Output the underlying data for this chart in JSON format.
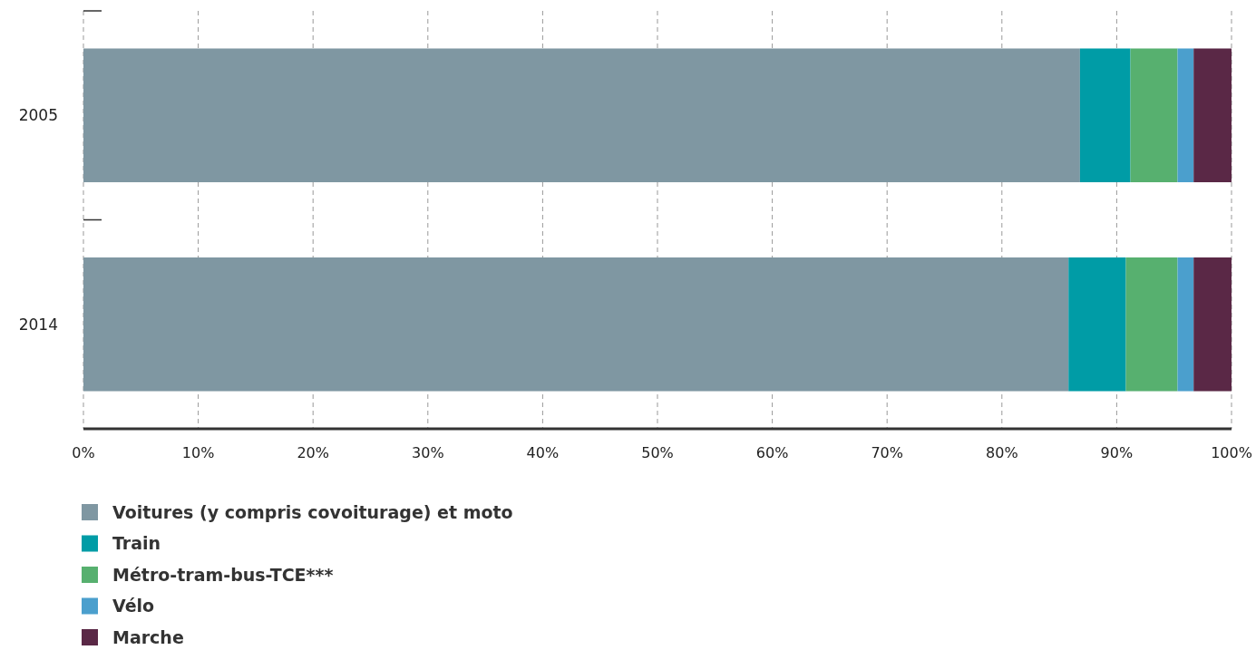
{
  "chart_data": {
    "type": "bar",
    "orientation": "horizontal",
    "stacked": true,
    "categories": [
      "2005",
      "2014"
    ],
    "series": [
      {
        "name": "Voitures (y compris covoiturage) et moto",
        "color": "#7f97a2",
        "values": [
          86.8,
          85.8
        ]
      },
      {
        "name": "Train",
        "color": "#009ca6",
        "values": [
          4.4,
          5.0
        ]
      },
      {
        "name": "Métro-tram-bus-TCE***",
        "color": "#57b06f",
        "values": [
          4.1,
          4.5
        ]
      },
      {
        "name": "Vélo",
        "color": "#4b9fcd",
        "values": [
          1.4,
          1.4
        ]
      },
      {
        "name": "Marche",
        "color": "#5a2846",
        "values": [
          3.3,
          3.3
        ]
      }
    ],
    "xlim": [
      0,
      100
    ],
    "xticks": [
      {
        "value": 0,
        "label": "0%"
      },
      {
        "value": 10,
        "label": "10%"
      },
      {
        "value": 20,
        "label": "20%"
      },
      {
        "value": 30,
        "label": "30%"
      },
      {
        "value": 40,
        "label": "40%"
      },
      {
        "value": 50,
        "label": "50%"
      },
      {
        "value": 60,
        "label": "60%"
      },
      {
        "value": 70,
        "label": "70%"
      },
      {
        "value": 80,
        "label": "80%"
      },
      {
        "value": 90,
        "label": "90%"
      },
      {
        "value": 100,
        "label": "100%"
      }
    ],
    "grid": "x",
    "legend": "bottom"
  }
}
